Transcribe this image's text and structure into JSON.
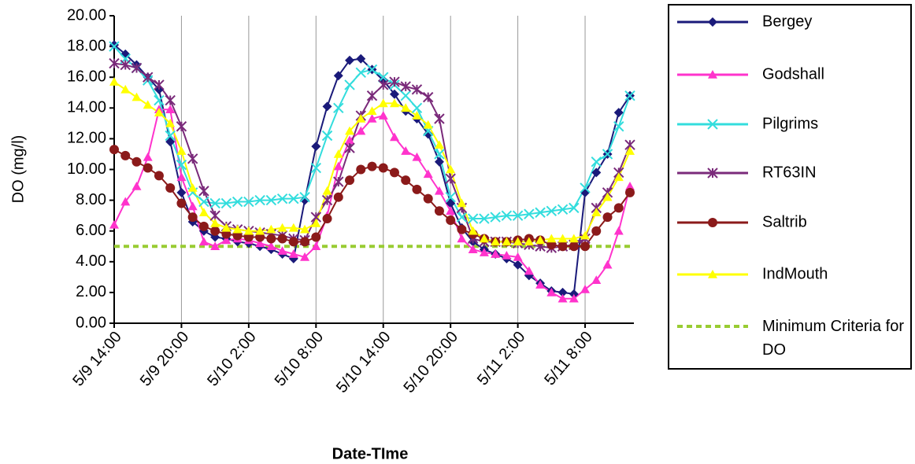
{
  "chart_data": {
    "type": "line",
    "x_label": "Date-TIme",
    "y_label": "DO (mg/l)",
    "x": [
      "5/9 14:00",
      "5/9 15:00",
      "5/9 16:00",
      "5/9 17:00",
      "5/9 18:00",
      "5/9 19:00",
      "5/9 20:00",
      "5/9 21:00",
      "5/9 22:00",
      "5/9 23:00",
      "5/10 0:00",
      "5/10 1:00",
      "5/10 2:00",
      "5/10 3:00",
      "5/10 4:00",
      "5/10 5:00",
      "5/10 6:00",
      "5/10 7:00",
      "5/10 8:00",
      "5/10 9:00",
      "5/10 10:00",
      "5/10 11:00",
      "5/10 12:00",
      "5/10 13:00",
      "5/10 14:00",
      "5/10 15:00",
      "5/10 16:00",
      "5/10 17:00",
      "5/10 18:00",
      "5/10 19:00",
      "5/10 20:00",
      "5/10 21:00",
      "5/10 22:00",
      "5/10 23:00",
      "5/11 0:00",
      "5/11 1:00",
      "5/11 2:00",
      "5/11 3:00",
      "5/11 4:00",
      "5/11 5:00",
      "5/11 6:00",
      "5/11 7:00",
      "5/11 8:00",
      "5/11 9:00",
      "5/11 10:00",
      "5/11 11:00",
      "5/11 12:00"
    ],
    "xlim": [
      "5/9 14:00",
      "5/11 12:00"
    ],
    "xticks": [
      "5/9 14:00",
      "5/9 20:00",
      "5/10 2:00",
      "5/10 8:00",
      "5/10 14:00",
      "5/10 20:00",
      "5/11 2:00",
      "5/11 8:00"
    ],
    "ylim": [
      0,
      20
    ],
    "yticks": [
      {
        "value": 0,
        "label": "0.00"
      },
      {
        "value": 2,
        "label": "2.00"
      },
      {
        "value": 4,
        "label": "4.00"
      },
      {
        "value": 6,
        "label": "6.00"
      },
      {
        "value": 8,
        "label": "8.00"
      },
      {
        "value": 10,
        "label": "10.00"
      },
      {
        "value": 12,
        "label": "12.00"
      },
      {
        "value": 14,
        "label": "14.00"
      },
      {
        "value": 16,
        "label": "16.00"
      },
      {
        "value": 18,
        "label": "18.00"
      },
      {
        "value": 20,
        "label": "20.00"
      }
    ],
    "grid": "x",
    "series": [
      {
        "name": "Bergey",
        "color": "#1a1a7a",
        "marker": "diamond",
        "values": [
          18.1,
          17.5,
          16.8,
          16.0,
          15.2,
          11.8,
          8.5,
          6.6,
          6.0,
          5.6,
          5.5,
          5.3,
          5.2,
          5.0,
          4.8,
          4.5,
          4.2,
          8.0,
          11.5,
          14.1,
          16.1,
          17.1,
          17.2,
          16.5,
          15.8,
          14.9,
          13.8,
          13.3,
          12.3,
          10.5,
          7.8,
          6.2,
          5.3,
          4.8,
          4.5,
          4.2,
          3.8,
          3.1,
          2.6,
          2.1,
          2.0,
          1.9,
          8.5,
          9.8,
          11.0,
          13.7,
          14.8
        ]
      },
      {
        "name": "Godshall",
        "color": "#ff33cc",
        "marker": "triangle",
        "values": [
          6.4,
          7.9,
          8.9,
          10.8,
          13.9,
          13.9,
          9.5,
          7.6,
          5.3,
          5.0,
          5.4,
          5.5,
          5.4,
          5.2,
          5.0,
          4.7,
          4.5,
          4.3,
          5.0,
          7.0,
          10.2,
          11.9,
          12.5,
          13.3,
          13.5,
          12.1,
          11.2,
          10.8,
          9.7,
          8.6,
          7.3,
          5.5,
          4.8,
          4.6,
          4.5,
          4.4,
          4.3,
          3.4,
          2.5,
          2.0,
          1.6,
          1.6,
          2.2,
          2.8,
          3.8,
          6.0,
          8.9
        ]
      },
      {
        "name": "Pilgrims",
        "color": "#33dddd",
        "marker": "x",
        "values": [
          18.0,
          17.2,
          16.6,
          15.8,
          14.5,
          12.2,
          10.3,
          8.5,
          7.9,
          7.8,
          7.8,
          7.9,
          7.9,
          8.0,
          8.0,
          8.1,
          8.1,
          8.2,
          10.1,
          12.2,
          14.0,
          15.5,
          16.3,
          16.5,
          16.0,
          15.5,
          14.8,
          14.0,
          12.5,
          11.0,
          8.2,
          6.9,
          6.8,
          6.8,
          6.9,
          7.0,
          7.0,
          7.1,
          7.2,
          7.3,
          7.4,
          7.5,
          8.8,
          10.5,
          11.0,
          12.8,
          14.8
        ]
      },
      {
        "name": "RT63IN",
        "color": "#7a2a7a",
        "marker": "star",
        "values": [
          16.9,
          16.8,
          16.6,
          16.0,
          15.5,
          14.5,
          12.8,
          10.7,
          8.6,
          7.0,
          6.3,
          6.1,
          6.0,
          5.9,
          5.8,
          5.7,
          5.5,
          5.4,
          6.9,
          8.0,
          9.2,
          11.4,
          13.5,
          14.8,
          15.5,
          15.7,
          15.4,
          15.2,
          14.7,
          13.3,
          9.4,
          7.5,
          5.5,
          5.3,
          5.3,
          5.3,
          5.2,
          5.1,
          5.0,
          4.9,
          5.0,
          5.1,
          5.5,
          7.5,
          8.5,
          9.8,
          11.6
        ]
      },
      {
        "name": "Saltrib",
        "color": "#8b1a1a",
        "marker": "circle",
        "values": [
          11.3,
          10.9,
          10.5,
          10.1,
          9.6,
          8.8,
          7.8,
          6.9,
          6.3,
          6.0,
          5.8,
          5.7,
          5.6,
          5.6,
          5.5,
          5.5,
          5.3,
          5.3,
          5.6,
          6.8,
          8.2,
          9.3,
          10.0,
          10.2,
          10.1,
          9.8,
          9.3,
          8.7,
          8.1,
          7.3,
          6.7,
          6.1,
          5.8,
          5.5,
          5.3,
          5.3,
          5.4,
          5.5,
          5.4,
          5.1,
          5.0,
          5.0,
          5.0,
          6.0,
          6.9,
          7.5,
          8.5
        ]
      },
      {
        "name": "IndMouth",
        "color": "#ffff00",
        "marker": "triangle",
        "values": [
          15.7,
          15.2,
          14.7,
          14.2,
          13.7,
          13.0,
          11.2,
          8.8,
          7.2,
          6.5,
          6.2,
          6.1,
          6.0,
          6.0,
          6.1,
          6.2,
          6.2,
          6.1,
          6.5,
          8.6,
          11.0,
          12.5,
          13.3,
          13.8,
          14.3,
          14.3,
          14.0,
          13.5,
          12.9,
          11.6,
          10.0,
          7.8,
          6.0,
          5.5,
          5.3,
          5.3,
          5.3,
          5.3,
          5.4,
          5.5,
          5.5,
          5.5,
          5.7,
          7.2,
          8.2,
          9.5,
          11.2
        ]
      }
    ],
    "reference_line": {
      "name": "Minimum Criteria for DO",
      "value": 5,
      "color": "#99cc33"
    }
  }
}
